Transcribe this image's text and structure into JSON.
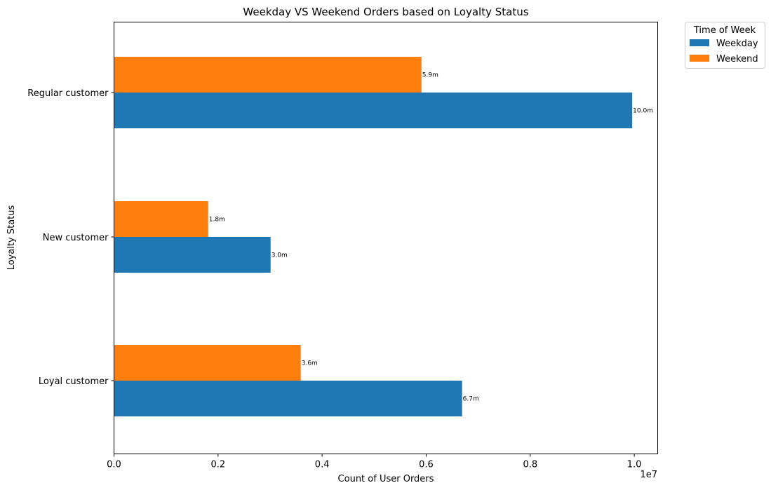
{
  "chart_data": {
    "type": "bar",
    "orientation": "horizontal",
    "title": "Weekday VS Weekend Orders based on Loyalty Status",
    "xlabel": "Count of User Orders",
    "ylabel": "Loyalty Status",
    "x_offset_label": "1e7",
    "categories": [
      "Loyal customer",
      "New customer",
      "Regular customer"
    ],
    "series": [
      {
        "name": "Weekday",
        "color": "#1f77b4",
        "values": [
          6690000,
          3010000,
          9960000
        ],
        "labels": [
          "6.7m",
          "3.0m",
          "10.0m"
        ]
      },
      {
        "name": "Weekend",
        "color": "#ff7f0e",
        "values": [
          3590000,
          1810000,
          5910000
        ],
        "labels": [
          "3.6m",
          "1.8m",
          "5.9m"
        ]
      }
    ],
    "xlim": [
      0,
      10450000
    ],
    "xticks": [
      0,
      2000000,
      4000000,
      6000000,
      8000000,
      10000000
    ],
    "xtick_labels": [
      "0.0",
      "0.2",
      "0.4",
      "0.6",
      "0.8",
      "1.0"
    ],
    "legend": {
      "title": "Time of Week",
      "placement": "outside top-right"
    },
    "grid": false
  }
}
